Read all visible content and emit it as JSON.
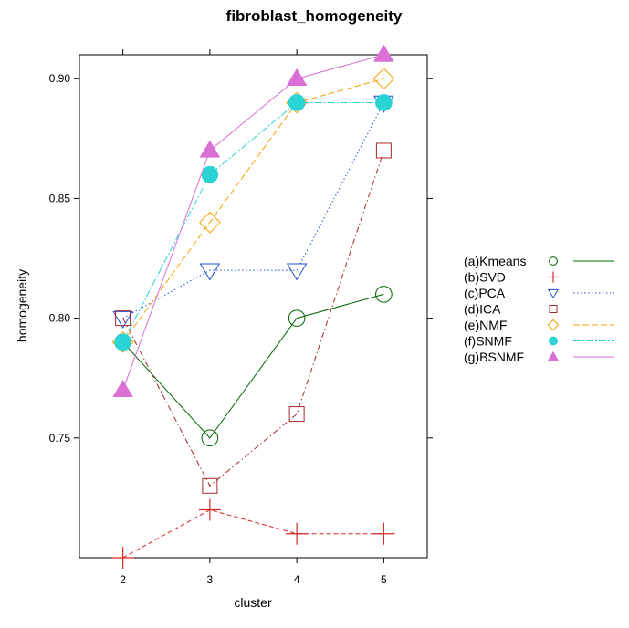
{
  "chart_data": {
    "type": "line",
    "title": "fibroblast_homogeneity",
    "xlabel": "cluster",
    "ylabel": "homogeneity",
    "x": [
      2,
      3,
      4,
      5
    ],
    "xlim": [
      1.5,
      5.5
    ],
    "ylim": [
      0.7,
      0.91
    ],
    "yticks": [
      0.75,
      0.8,
      0.85,
      0.9
    ],
    "yticklabels": [
      "0.75",
      "0.80",
      "0.85",
      "0.90"
    ],
    "xticks": [
      2,
      3,
      4,
      5
    ],
    "xticklabels": [
      "2",
      "3",
      "4",
      "5"
    ],
    "grid": false,
    "legend_position": "right",
    "series": [
      {
        "name": "(a)Kmeans",
        "values": [
          0.79,
          0.75,
          0.8,
          0.81
        ],
        "color": "#006400",
        "marker": "circle-open",
        "dash": "none"
      },
      {
        "name": "(b)SVD",
        "values": [
          0.7,
          0.72,
          0.71,
          0.71
        ],
        "color": "#d62728",
        "marker": "plus",
        "dash": "5,3"
      },
      {
        "name": "(c)PCA",
        "values": [
          0.8,
          0.82,
          0.82,
          0.89
        ],
        "color": "#1f4fd6",
        "marker": "triangle-down-open",
        "dash": "1.5,2.5"
      },
      {
        "name": "(d)ICA",
        "values": [
          0.8,
          0.73,
          0.76,
          0.87
        ],
        "color": "#a52a2a",
        "marker": "square-open",
        "dash": "6,3,1.5,3"
      },
      {
        "name": "(e)NMF",
        "values": [
          0.79,
          0.84,
          0.89,
          0.9
        ],
        "color": "#f4a300",
        "marker": "diamond-open",
        "dash": "7,3"
      },
      {
        "name": "(f)SNMF",
        "values": [
          0.79,
          0.86,
          0.89,
          0.89
        ],
        "color": "#2ad4d4",
        "marker": "circle-filled",
        "dash": "8,2,2,2"
      },
      {
        "name": "(g)BSNMF",
        "values": [
          0.77,
          0.87,
          0.9,
          0.91
        ],
        "color": "#da70d6",
        "marker": "triangle-up-filled",
        "dash": "none"
      }
    ]
  }
}
